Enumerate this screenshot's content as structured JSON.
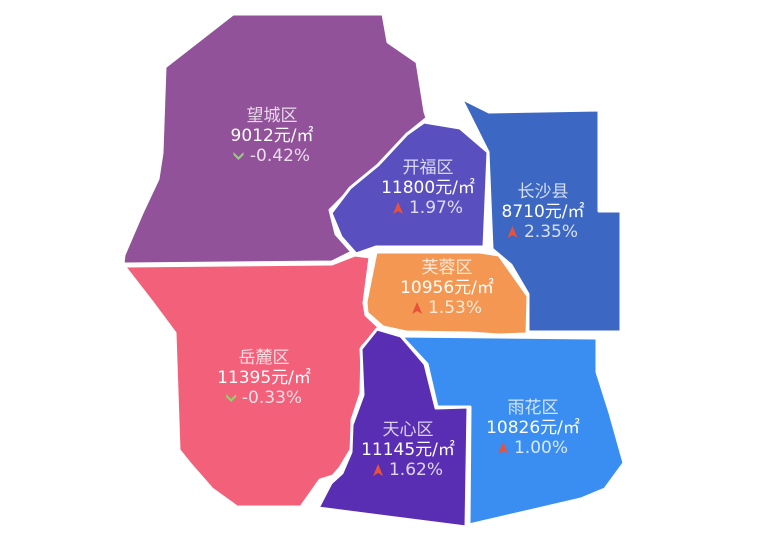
{
  "districts": [
    {
      "id": "wangcheng",
      "name": "望城区",
      "price": "9012元/㎡",
      "change": "-0.42%",
      "trend": "down",
      "color": "#91529a"
    },
    {
      "id": "kaifu",
      "name": "开福区",
      "price": "11800元/㎡",
      "change": "1.97%",
      "trend": "up",
      "color": "#5a4fbf"
    },
    {
      "id": "changsha",
      "name": "长沙县",
      "price": "8710元/㎡",
      "change": "2.35%",
      "trend": "up",
      "color": "#3c67c3"
    },
    {
      "id": "furong",
      "name": "芙蓉区",
      "price": "10956元/㎡",
      "change": "1.53%",
      "trend": "up",
      "color": "#f49752"
    },
    {
      "id": "yuelu",
      "name": "岳麓区",
      "price": "11395元/㎡",
      "change": "-0.33%",
      "trend": "down",
      "color": "#f2607a"
    },
    {
      "id": "tianxin",
      "name": "天心区",
      "price": "11145元/㎡",
      "change": "1.62%",
      "trend": "up",
      "color": "#5a2eb2"
    },
    {
      "id": "yuhua",
      "name": "雨花区",
      "price": "10826元/㎡",
      "change": "1.00%",
      "trend": "up",
      "color": "#3b8ef1"
    }
  ],
  "icons": {
    "up": "triangle-up-icon",
    "down": "chevron-down-icon"
  },
  "trend_colors": {
    "up": "#e8523b",
    "down": "#8fd46a"
  }
}
